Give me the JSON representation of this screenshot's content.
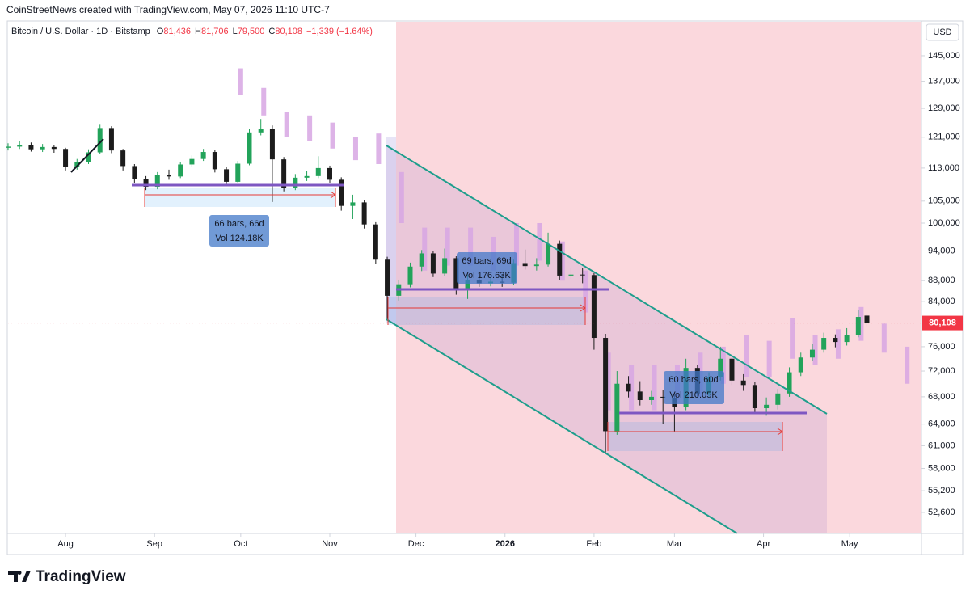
{
  "header": {
    "credit": "CoinStreetNews created with TradingView.com, May 07, 2026 11:10 UTC-7"
  },
  "chart_data": {
    "type": "candlestick",
    "title": "Bitcoin / U.S. Dollar · 1D · Bitstamp",
    "ohlc": [
      {
        "label": "O",
        "value": "81,436"
      },
      {
        "label": "H",
        "value": "81,706"
      },
      {
        "label": "L",
        "value": "79,500"
      },
      {
        "label": "C",
        "value": "80,108"
      }
    ],
    "change": "−1,339 (−1.64%)",
    "currency": "USD",
    "log_scale": true,
    "grid": false,
    "xlim": [
      "2025-07-12",
      "2026-05-26"
    ],
    "xticks": [
      {
        "value": "2025-08-01",
        "label": "Aug"
      },
      {
        "value": "2025-09-01",
        "label": "Sep"
      },
      {
        "value": "2025-10-01",
        "label": "Oct"
      },
      {
        "value": "2025-11-01",
        "label": "Nov"
      },
      {
        "value": "2025-12-01",
        "label": "Dec"
      },
      {
        "value": "2026-01-01",
        "label": "2026"
      },
      {
        "value": "2026-02-01",
        "label": "Feb"
      },
      {
        "value": "2026-03-01",
        "label": "Mar"
      },
      {
        "value": "2026-04-01",
        "label": "Apr"
      },
      {
        "value": "2026-05-01",
        "label": "May"
      }
    ],
    "ylim": [
      50200,
      155500
    ],
    "yticks": [
      {
        "value": 145000,
        "label": "145,000"
      },
      {
        "value": 137000,
        "label": "137,000"
      },
      {
        "value": 129000,
        "label": "129,000"
      },
      {
        "value": 121000,
        "label": "121,000"
      },
      {
        "value": 113000,
        "label": "113,000"
      },
      {
        "value": 105000,
        "label": "105,000"
      },
      {
        "value": 100000,
        "label": "100,000"
      },
      {
        "value": 94000,
        "label": "94,000"
      },
      {
        "value": 88000,
        "label": "88,000"
      },
      {
        "value": 84000,
        "label": "84,000"
      },
      {
        "value": 76000,
        "label": "76,000"
      },
      {
        "value": 72000,
        "label": "72,000"
      },
      {
        "value": 68000,
        "label": "68,000"
      },
      {
        "value": 64000,
        "label": "64,000"
      },
      {
        "value": 61000,
        "label": "61,000"
      },
      {
        "value": 58000,
        "label": "58,000"
      },
      {
        "value": 55200,
        "label": "55,200"
      },
      {
        "value": 52600,
        "label": "52,600"
      }
    ],
    "last_price": {
      "value": 80108,
      "label": "80,108",
      "color": "#f23645"
    },
    "candles": {
      "up_color": "#22a35a",
      "down_color": "#1c1c1c",
      "x": [
        "2025-07-12",
        "2025-07-16",
        "2025-07-20",
        "2025-07-24",
        "2025-07-28",
        "2025-08-01",
        "2025-08-05",
        "2025-08-09",
        "2025-08-13",
        "2025-08-17",
        "2025-08-21",
        "2025-08-25",
        "2025-08-29",
        "2025-09-02",
        "2025-09-06",
        "2025-09-10",
        "2025-09-14",
        "2025-09-18",
        "2025-09-22",
        "2025-09-26",
        "2025-09-30",
        "2025-10-04",
        "2025-10-08",
        "2025-10-12",
        "2025-10-16",
        "2025-10-20",
        "2025-10-24",
        "2025-10-28",
        "2025-11-01",
        "2025-11-05",
        "2025-11-09",
        "2025-11-13",
        "2025-11-17",
        "2025-11-21",
        "2025-11-25",
        "2025-11-29",
        "2025-12-03",
        "2025-12-07",
        "2025-12-11",
        "2025-12-15",
        "2025-12-19",
        "2025-12-23",
        "2025-12-27",
        "2025-12-31",
        "2026-01-04",
        "2026-01-08",
        "2026-01-12",
        "2026-01-16",
        "2026-01-20",
        "2026-01-24",
        "2026-01-28",
        "2026-02-01",
        "2026-02-05",
        "2026-02-09",
        "2026-02-13",
        "2026-02-17",
        "2026-02-21",
        "2026-02-25",
        "2026-03-01",
        "2026-03-05",
        "2026-03-09",
        "2026-03-13",
        "2026-03-17",
        "2026-03-21",
        "2026-03-25",
        "2026-03-29",
        "2026-04-02",
        "2026-04-06",
        "2026-04-10",
        "2026-04-14",
        "2026-04-18",
        "2026-04-22",
        "2026-04-26",
        "2026-04-30",
        "2026-05-04",
        "2026-05-07"
      ],
      "open": [
        118200,
        118500,
        119000,
        117800,
        118400,
        117900,
        113300,
        114500,
        117000,
        123500,
        117500,
        113500,
        110200,
        108400,
        111200,
        110900,
        113900,
        115300,
        117100,
        112700,
        109600,
        114100,
        122300,
        123300,
        115200,
        108200,
        110600,
        111000,
        113000,
        110100,
        103900,
        104700,
        99700,
        92200,
        85100,
        87300,
        90800,
        93500,
        89400,
        92500,
        86400,
        88100,
        87500,
        87800,
        87600,
        91500,
        90900,
        91200,
        95500,
        89000,
        89200,
        89100,
        77500,
        63000,
        70000,
        68800,
        67500,
        68000,
        67800,
        66500,
        72500,
        68500,
        71000,
        74000,
        70500,
        69800,
        66300,
        66800,
        68500,
        71800,
        74200,
        75500,
        77500,
        76800,
        78000,
        81436
      ],
      "high": [
        119400,
        119900,
        119600,
        119200,
        119000,
        118200,
        115300,
        117800,
        124400,
        124000,
        117900,
        114000,
        111000,
        112000,
        112600,
        114500,
        116200,
        117900,
        117600,
        113300,
        114800,
        123200,
        126000,
        124200,
        115800,
        111500,
        112300,
        116000,
        113600,
        110700,
        106500,
        105300,
        100200,
        92800,
        88200,
        91600,
        94200,
        94000,
        94500,
        92900,
        89200,
        88900,
        88600,
        89300,
        92200,
        94300,
        92500,
        97900,
        96200,
        90600,
        90500,
        89500,
        78200,
        72000,
        71200,
        70400,
        68900,
        69000,
        68600,
        74000,
        73000,
        71800,
        76000,
        74800,
        71500,
        70300,
        67900,
        69200,
        72600,
        75000,
        76500,
        78400,
        78100,
        79200,
        82500,
        81706
      ],
      "low": [
        117500,
        117900,
        117200,
        117100,
        116900,
        112400,
        112600,
        114000,
        116600,
        116800,
        112400,
        109300,
        107600,
        107800,
        110100,
        110500,
        113300,
        114800,
        111900,
        108700,
        109200,
        113700,
        121500,
        104800,
        107300,
        107600,
        109800,
        110500,
        109400,
        102800,
        100900,
        98800,
        91300,
        80600,
        84200,
        86700,
        89900,
        88700,
        88900,
        85300,
        84500,
        86800,
        86900,
        86800,
        87100,
        90200,
        90000,
        90800,
        88200,
        88300,
        87500,
        75500,
        60100,
        62500,
        67900,
        66700,
        66800,
        64000,
        63000,
        66000,
        67800,
        68000,
        70500,
        69800,
        68900,
        65600,
        65200,
        66100,
        68000,
        71200,
        73600,
        75000,
        75900,
        76200,
        77600,
        79500
      ],
      "close": [
        118500,
        119000,
        117800,
        118400,
        117900,
        113300,
        114500,
        117000,
        123500,
        117500,
        113500,
        110200,
        108400,
        111200,
        110900,
        113900,
        115300,
        117100,
        112700,
        109600,
        114100,
        122300,
        123300,
        115200,
        108200,
        110600,
        111000,
        113000,
        110100,
        103900,
        104700,
        99700,
        92200,
        85100,
        87300,
        90800,
        93500,
        89400,
        92500,
        86400,
        88100,
        87500,
        87800,
        87600,
        91500,
        90900,
        91200,
        95500,
        89000,
        89200,
        89100,
        77500,
        63000,
        70000,
        68800,
        67500,
        68000,
        67800,
        66500,
        72500,
        68500,
        71000,
        74000,
        70500,
        69800,
        66300,
        66800,
        68500,
        71800,
        74200,
        75500,
        77500,
        76800,
        78000,
        81200,
        80108
      ]
    },
    "projection": {
      "color": "#d7a6e3",
      "x": [
        "2025-10-01",
        "2025-10-09",
        "2025-10-17",
        "2025-10-25",
        "2025-11-02",
        "2025-11-10",
        "2025-11-18",
        "2025-11-26",
        "2025-12-04",
        "2025-12-12",
        "2025-12-20",
        "2025-12-28",
        "2026-01-05",
        "2026-01-13",
        "2026-01-21",
        "2026-01-29",
        "2026-02-06",
        "2026-02-14",
        "2026-02-22",
        "2026-03-02",
        "2026-03-10",
        "2026-03-18",
        "2026-03-26",
        "2026-04-03",
        "2026-04-11",
        "2026-04-19",
        "2026-04-27",
        "2026-05-05",
        "2026-05-13",
        "2026-05-21"
      ],
      "high": [
        141000,
        135000,
        128000,
        127000,
        125000,
        121000,
        122000,
        112000,
        99000,
        99000,
        99000,
        97000,
        100000,
        100000,
        96000,
        90000,
        75000,
        73000,
        73000,
        73000,
        75000,
        76000,
        78000,
        77000,
        81000,
        78000,
        79000,
        83000,
        80000,
        76000
      ],
      "low": [
        133000,
        127000,
        121000,
        120000,
        118000,
        115000,
        114000,
        100000,
        90000,
        91000,
        91000,
        90000,
        91000,
        92000,
        88000,
        82000,
        66000,
        66000,
        66000,
        67000,
        68000,
        70000,
        71000,
        71000,
        74000,
        73000,
        74000,
        77000,
        75000,
        70000
      ]
    },
    "measures": [
      {
        "bars": "66 bars, 66d",
        "volume": "Vol 124.18K"
      },
      {
        "bars": "69 bars, 69d",
        "volume": "Vol 176.63K"
      },
      {
        "bars": "60 bars, 60d",
        "volume": "Vol 210.05K"
      }
    ]
  },
  "footer": {
    "brand": "TradingView"
  }
}
